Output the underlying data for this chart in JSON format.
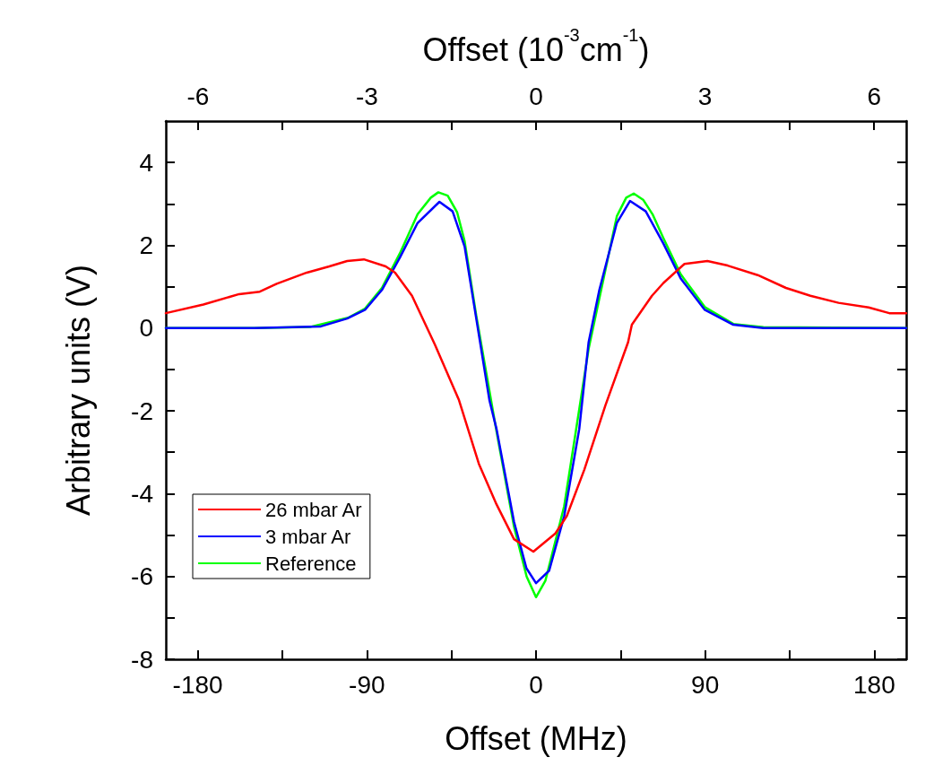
{
  "chart_data": {
    "type": "line",
    "xlabel": "Offset (MHz)",
    "ylabel": "Arbitrary units (V)",
    "x2label": "Offset (10$^{-3}$cm$^{-1}$)",
    "xlim": [
      -197,
      197
    ],
    "xticks": [
      -180,
      {
        "value": -135,
        "label": null
      },
      -90,
      {
        "value": -45,
        "label": null
      },
      0,
      {
        "value": 45,
        "label": null
      },
      90,
      {
        "value": 135,
        "label": null
      },
      180
    ],
    "x2lim": [
      -6.57,
      6.57
    ],
    "x2ticks": [
      -6,
      {
        "value": -4.5,
        "label": null
      },
      -3,
      {
        "value": -1.5,
        "label": null
      },
      0,
      {
        "value": 1.5,
        "label": null
      },
      3,
      {
        "value": 4.5,
        "label": null
      },
      6
    ],
    "ylim": [
      -8,
      5
    ],
    "yticks": [
      -8,
      {
        "value": -7,
        "label": null
      },
      -6,
      {
        "value": -5,
        "label": null
      },
      -4,
      {
        "value": -3,
        "label": null
      },
      -2,
      {
        "value": -1,
        "label": null
      },
      0,
      {
        "value": 1,
        "label": null
      },
      2,
      {
        "value": 3,
        "label": null
      },
      4
    ],
    "grid": false,
    "legend": "bottom left",
    "marker": "none",
    "line_style": "solid",
    "series": [
      {
        "name": "26 mbar Ar",
        "color": "#ff0000",
        "x": [
          -197,
          -177,
          -158,
          -147,
          -138,
          -122,
          -110,
          -100.5,
          -91.6,
          -80,
          -75,
          -66,
          -53.8,
          -41,
          -30.4,
          -21,
          -11.7,
          -1.4,
          10.3,
          16.4,
          25.7,
          36.9,
          49,
          51,
          61.7,
          67.8,
          79,
          91.2,
          102,
          118,
          133,
          146,
          161,
          177,
          188,
          197
        ],
        "values": [
          0.36,
          0.57,
          0.82,
          0.88,
          1.07,
          1.34,
          1.49,
          1.62,
          1.66,
          1.49,
          1.34,
          0.78,
          -0.4,
          -1.74,
          -3.28,
          -4.26,
          -5.1,
          -5.4,
          -4.96,
          -4.54,
          -3.42,
          -1.87,
          -0.34,
          0.08,
          0.78,
          1.09,
          1.55,
          1.62,
          1.51,
          1.28,
          0.97,
          0.78,
          0.61,
          0.5,
          0.36,
          0.36
        ]
      },
      {
        "name": "3 mbar Ar",
        "color": "#0000ff",
        "x": [
          -197,
          -150,
          -114.5,
          -100.5,
          -91,
          -82,
          -72.5,
          -63,
          -51.4,
          -44.4,
          -38,
          -31.8,
          -24.8,
          -21,
          -11.7,
          -5.1,
          0,
          7,
          15,
          23,
          28,
          33.7,
          43,
          50,
          58.4,
          67.8,
          77,
          89.8,
          105,
          121,
          197
        ],
        "values": [
          0,
          0,
          0.04,
          0.23,
          0.44,
          0.92,
          1.7,
          2.54,
          3.05,
          2.82,
          1.97,
          0.23,
          -1.74,
          -2.44,
          -4.68,
          -5.8,
          -6.16,
          -5.86,
          -4.54,
          -2.44,
          -0.34,
          0.92,
          2.54,
          3.07,
          2.82,
          2.04,
          1.2,
          0.44,
          0.08,
          0,
          0
        ]
      },
      {
        "name": "Reference",
        "color": "#00ff00",
        "x": [
          -197,
          -150,
          -120,
          -100,
          -91,
          -82,
          -72.5,
          -63,
          -56,
          -52,
          -47,
          -42,
          -38,
          -31.8,
          -21,
          -11.7,
          -5,
          0,
          5,
          11.7,
          15,
          28,
          43,
          48,
          52,
          57,
          62,
          68,
          77,
          90,
          105,
          121,
          197
        ],
        "values": [
          0,
          0,
          0.03,
          0.25,
          0.47,
          0.97,
          1.8,
          2.75,
          3.15,
          3.28,
          3.2,
          2.8,
          2.1,
          0.3,
          -2.5,
          -4.8,
          -6.0,
          -6.5,
          -6.1,
          -4.9,
          -4.3,
          -0.5,
          2.7,
          3.15,
          3.25,
          3.1,
          2.75,
          2.15,
          1.3,
          0.5,
          0.1,
          0.02,
          0
        ]
      }
    ]
  }
}
